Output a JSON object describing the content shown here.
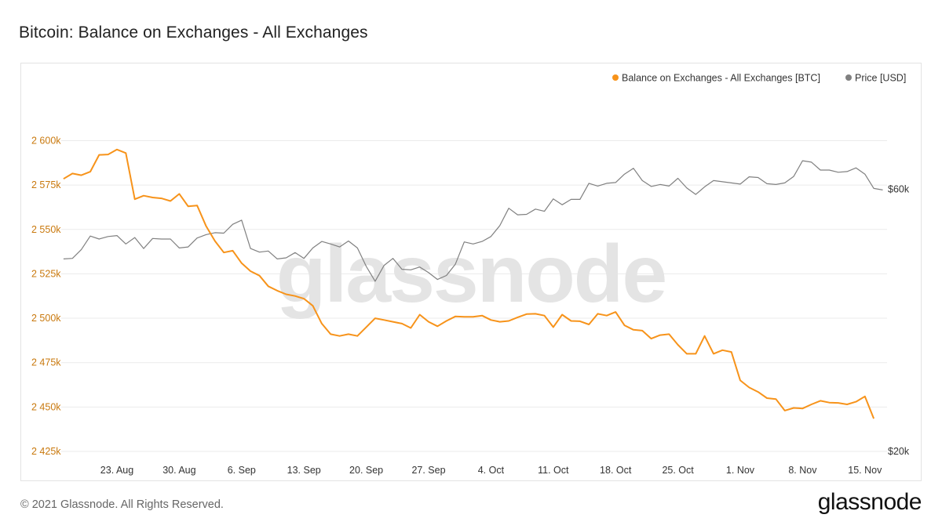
{
  "title": "Bitcoin: Balance on Exchanges - All Exchanges",
  "footer": {
    "copyright": "© 2021 Glassnode. All Rights Reserved.",
    "brand": "glassnode"
  },
  "watermark": "glassnode",
  "colors": {
    "balance": "#f7931a",
    "price": "#808080",
    "grid": "#ebebeb",
    "axis_left": "#c9790e",
    "axis_text": "#333333"
  },
  "chart_data": {
    "type": "line",
    "title": "Bitcoin: Balance on Exchanges - All Exchanges",
    "x_ticks": [
      "23. Aug",
      "30. Aug",
      "6. Sep",
      "13. Sep",
      "20. Sep",
      "27. Sep",
      "4. Oct",
      "11. Oct",
      "18. Oct",
      "25. Oct",
      "1. Nov",
      "8. Nov",
      "15. Nov"
    ],
    "x_start_date": "2021-08-17",
    "x_step_days": 1,
    "y_left": {
      "label": "Balance on Exchanges - All Exchanges [BTC]",
      "range": [
        2425000,
        2613000
      ],
      "ticks": [
        2425000,
        2450000,
        2475000,
        2500000,
        2525000,
        2550000,
        2575000,
        2600000
      ],
      "tick_labels": [
        "2 425k",
        "2 450k",
        "2 475k",
        "2 500k",
        "2 525k",
        "2 550k",
        "2 575k",
        "2 600k"
      ]
    },
    "y_right": {
      "label": "Price [USD]",
      "scale": "log",
      "range": [
        20000,
        81000
      ],
      "ticks": [
        20000,
        60000
      ],
      "tick_labels": [
        "$20k",
        "$60k"
      ]
    },
    "legend": {
      "position": "top-right"
    },
    "series": [
      {
        "name": "Balance on Exchanges - All Exchanges [BTC]",
        "axis": "left",
        "color": "#f7931a",
        "values": [
          2578500,
          2581500,
          2580500,
          2582500,
          2592000,
          2592200,
          2595000,
          2593000,
          2567000,
          2569000,
          2568000,
          2567500,
          2566000,
          2570000,
          2563000,
          2563500,
          2552000,
          2543500,
          2537000,
          2538000,
          2531000,
          2526500,
          2524000,
          2518000,
          2515500,
          2513500,
          2512500,
          2511000,
          2507000,
          2497000,
          2491000,
          2490000,
          2491000,
          2490000,
          2495000,
          2500000,
          2499000,
          2498000,
          2497000,
          2494500,
          2502000,
          2498000,
          2495500,
          2498500,
          2501000,
          2500800,
          2500800,
          2501500,
          2499000,
          2498000,
          2498500,
          2500500,
          2502300,
          2502500,
          2501500,
          2495000,
          2502000,
          2498500,
          2498300,
          2496500,
          2502500,
          2501500,
          2503500,
          2496000,
          2493500,
          2493000,
          2488500,
          2490500,
          2491000,
          2485000,
          2480000,
          2480000,
          2490000,
          2480000,
          2482000,
          2481000,
          2465000,
          2461000,
          2458500,
          2455000,
          2454500,
          2448000,
          2449500,
          2449200,
          2451500,
          2453500,
          2452500,
          2452300,
          2451500,
          2453000,
          2456000,
          2443500
        ]
      },
      {
        "name": "Price [USD]",
        "axis": "right",
        "color": "#808080",
        "values": [
          44800,
          44900,
          46600,
          49300,
          48700,
          49200,
          49400,
          47700,
          49000,
          46800,
          48800,
          48700,
          48700,
          46900,
          47100,
          48900,
          49600,
          50000,
          49900,
          51800,
          52700,
          46800,
          46100,
          46300,
          44800,
          45000,
          46000,
          44900,
          46900,
          48200,
          47700,
          47100,
          48300,
          46900,
          43400,
          40800,
          43600,
          44900,
          42900,
          42800,
          43300,
          42300,
          41100,
          41800,
          43800,
          48100,
          47700,
          48200,
          49200,
          51500,
          55400,
          53900,
          54000,
          55200,
          54700,
          57600,
          56200,
          57500,
          57500,
          61500,
          60800,
          61500,
          61700,
          63900,
          65500,
          62200,
          60700,
          61200,
          60800,
          62800,
          60300,
          58700,
          60600,
          62200,
          61900,
          61600,
          61300,
          63200,
          63000,
          61400,
          61200,
          61600,
          63300,
          67600,
          67200,
          65000,
          65000,
          64400,
          64600,
          65600,
          63900,
          60200,
          59800
        ]
      }
    ]
  }
}
